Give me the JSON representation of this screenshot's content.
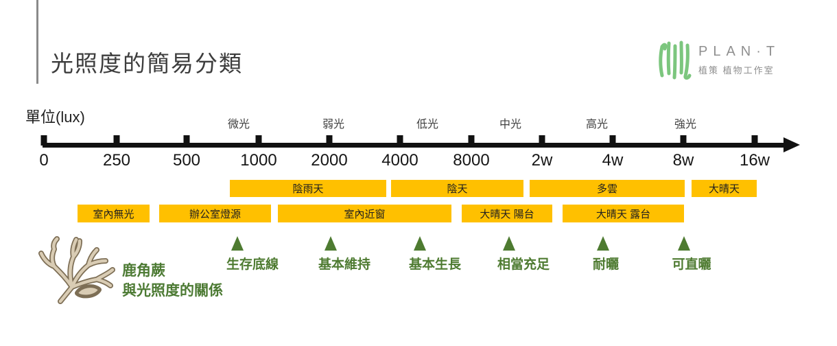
{
  "slide": {
    "title": "光照度的簡易分類",
    "logo": {
      "wordmark": "PLAN·T",
      "subtitle": "植策 植物工作室"
    }
  },
  "chart_data": {
    "type": "axis-diagram",
    "title": "光照度的簡易分類",
    "unit_label": "單位(lux)",
    "axis_ticks": [
      "0",
      "250",
      "500",
      "1000",
      "2000",
      "4000",
      "8000",
      "2w",
      "4w",
      "8w",
      "16w"
    ],
    "zone_labels": [
      "微光",
      "弱光",
      "低光",
      "中光",
      "高光",
      "強光"
    ],
    "weather_bands": [
      "陰雨天",
      "陰天",
      "多雲",
      "大晴天"
    ],
    "environment_bands": [
      "室內無光",
      "辦公室燈源",
      "室內近窗",
      "大晴天 陽台",
      "大晴天 露台"
    ],
    "fern_markers": [
      "生存底線",
      "基本維持",
      "基本生長",
      "相當充足",
      "耐曬",
      "可直曬"
    ],
    "footnote": {
      "line1": "鹿角蕨",
      "line2": "與光照度的關係"
    }
  },
  "colors": {
    "band_yellow": "#FFC000",
    "marker_green": "#4E7B31",
    "logo_green": "#7CC67E",
    "logo_gray": "#8F8F8F",
    "axis_black": "#111111"
  }
}
